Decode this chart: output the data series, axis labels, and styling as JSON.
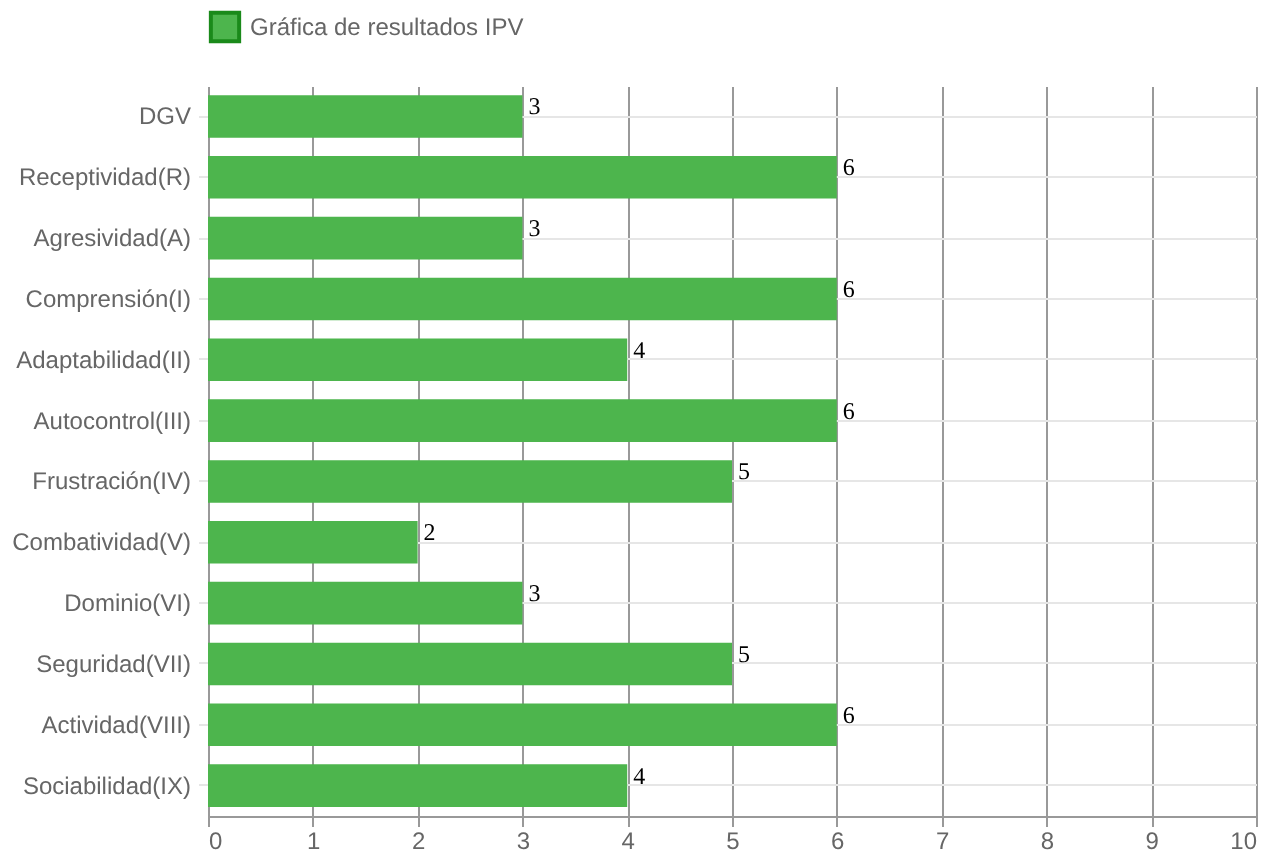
{
  "chart_data": {
    "type": "bar",
    "orientation": "horizontal",
    "categories": [
      "DGV",
      "Receptividad(R)",
      "Agresividad(A)",
      "Comprensión(I)",
      "Adaptabilidad(II)",
      "Autocontrol(III)",
      "Frustración(IV)",
      "Combatividad(V)",
      "Dominio(VI)",
      "Seguridad(VII)",
      "Actividad(VIII)",
      "Sociabilidad(IX)"
    ],
    "series": [
      {
        "name": "Gráfica de resultados IPV",
        "color": "#4db54d",
        "values": [
          3,
          6,
          3,
          6,
          4,
          6,
          5,
          2,
          3,
          5,
          6,
          4
        ]
      }
    ],
    "xlim": [
      0,
      10
    ],
    "xticks": [
      0,
      1,
      2,
      3,
      4,
      5,
      6,
      7,
      8,
      9,
      10
    ],
    "grid": true,
    "legend": "top",
    "data_labels": true
  }
}
